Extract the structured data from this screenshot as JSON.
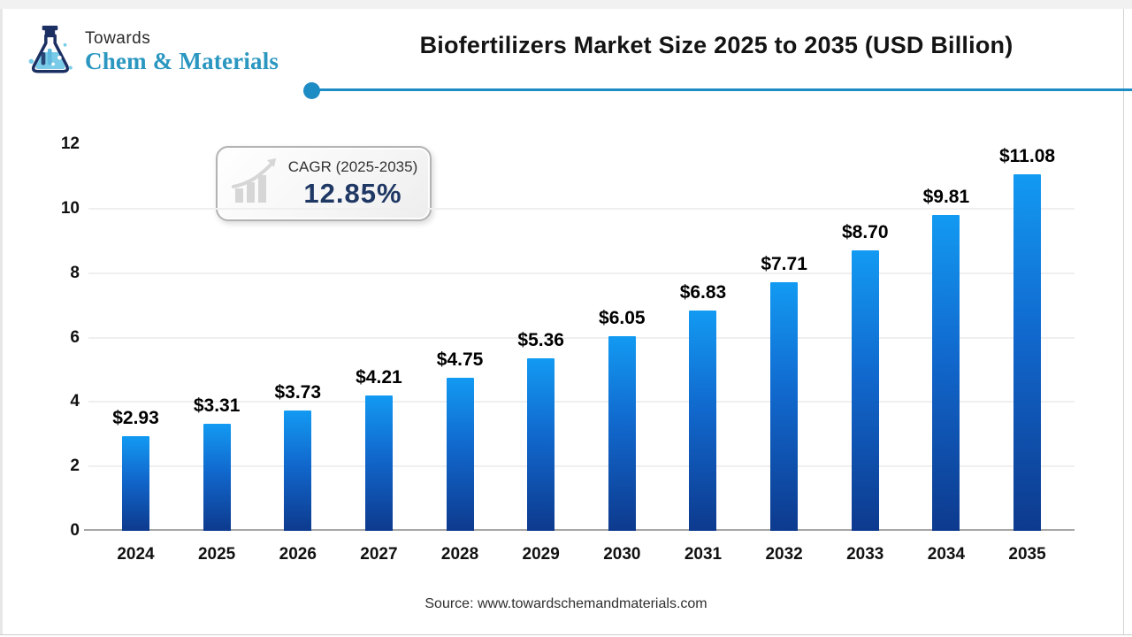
{
  "logo": {
    "towards": "Towards",
    "brand": "Chem & Materials",
    "icon": "flask-icon"
  },
  "header": {
    "title": "Biofertilizers Market Size 2025 to 2035 (USD Billion)"
  },
  "cagr_badge": {
    "icon": "growth-chart-icon",
    "label": "CAGR (2025-2035)",
    "value": "12.85%"
  },
  "chart_data": {
    "type": "bar",
    "title": "Biofertilizers Market Size 2025 to 2035 (USD Billion)",
    "categories": [
      "2024",
      "2025",
      "2026",
      "2027",
      "2028",
      "2029",
      "2030",
      "2031",
      "2032",
      "2033",
      "2034",
      "2035"
    ],
    "values": [
      2.93,
      3.31,
      3.73,
      4.21,
      4.75,
      5.36,
      6.05,
      6.83,
      7.71,
      8.7,
      9.81,
      11.08
    ],
    "value_labels": [
      "$2.93",
      "$3.31",
      "$3.73",
      "$4.21",
      "$4.75",
      "$5.36",
      "$6.05",
      "$6.83",
      "$7.71",
      "$8.70",
      "$9.81",
      "$11.08"
    ],
    "xlabel": "",
    "ylabel": "",
    "ylim": [
      0,
      12
    ],
    "yticks": [
      0,
      2,
      4,
      6,
      8,
      10,
      12
    ],
    "grid": "horizontal-light",
    "legend": "none",
    "bar_color_top": "#129af2",
    "bar_color_bottom": "#0d3a8e"
  },
  "footer": {
    "source": "Source: www.towardschemandmaterials.com"
  },
  "colors": {
    "accent_line": "#1e8cc4",
    "brand_teal": "#2b97c0",
    "navy": "#1f3864",
    "flask_dark": "#1b2f63",
    "flask_light": "#79cbe8",
    "grid": "#efefef",
    "axis": "#a6a6a6"
  }
}
